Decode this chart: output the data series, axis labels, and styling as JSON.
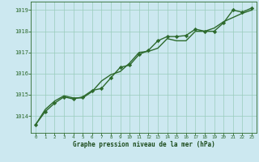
{
  "x": [
    0,
    1,
    2,
    3,
    4,
    5,
    6,
    7,
    8,
    9,
    10,
    11,
    12,
    13,
    14,
    15,
    16,
    17,
    18,
    19,
    20,
    21,
    22,
    23
  ],
  "line1": [
    1013.6,
    1014.2,
    1014.6,
    1014.9,
    1014.8,
    1014.9,
    1015.2,
    1015.3,
    1015.8,
    1016.3,
    1016.4,
    1016.9,
    1017.1,
    1017.55,
    1017.75,
    1017.75,
    1017.8,
    1018.1,
    1018.0,
    1018.0,
    1018.4,
    1019.0,
    1018.9,
    1019.1
  ],
  "line2": [
    1013.6,
    1014.3,
    1014.7,
    1014.95,
    1014.85,
    1014.85,
    1015.15,
    1015.65,
    1015.95,
    1016.1,
    1016.5,
    1017.0,
    1017.05,
    1017.2,
    1017.65,
    1017.55,
    1017.55,
    1018.0,
    1018.0,
    1018.15,
    1018.45,
    1018.65,
    1018.85,
    1019.0
  ],
  "ylim": [
    1013.2,
    1019.4
  ],
  "yticks": [
    1014,
    1015,
    1016,
    1017,
    1018,
    1019
  ],
  "xticks": [
    0,
    1,
    2,
    3,
    4,
    5,
    6,
    7,
    8,
    9,
    10,
    11,
    12,
    13,
    14,
    15,
    16,
    17,
    18,
    19,
    20,
    21,
    22,
    23
  ],
  "xlabel": "Graphe pression niveau de la mer (hPa)",
  "line_color": "#2d6a2d",
  "marker_color": "#2d6a2d",
  "bg_color": "#cce8f0",
  "grid_color": "#99ccbb",
  "axis_color": "#2d6a2d",
  "label_color": "#1a4a1a",
  "marker": "D",
  "marker_size": 2.2,
  "line_width": 1.0
}
